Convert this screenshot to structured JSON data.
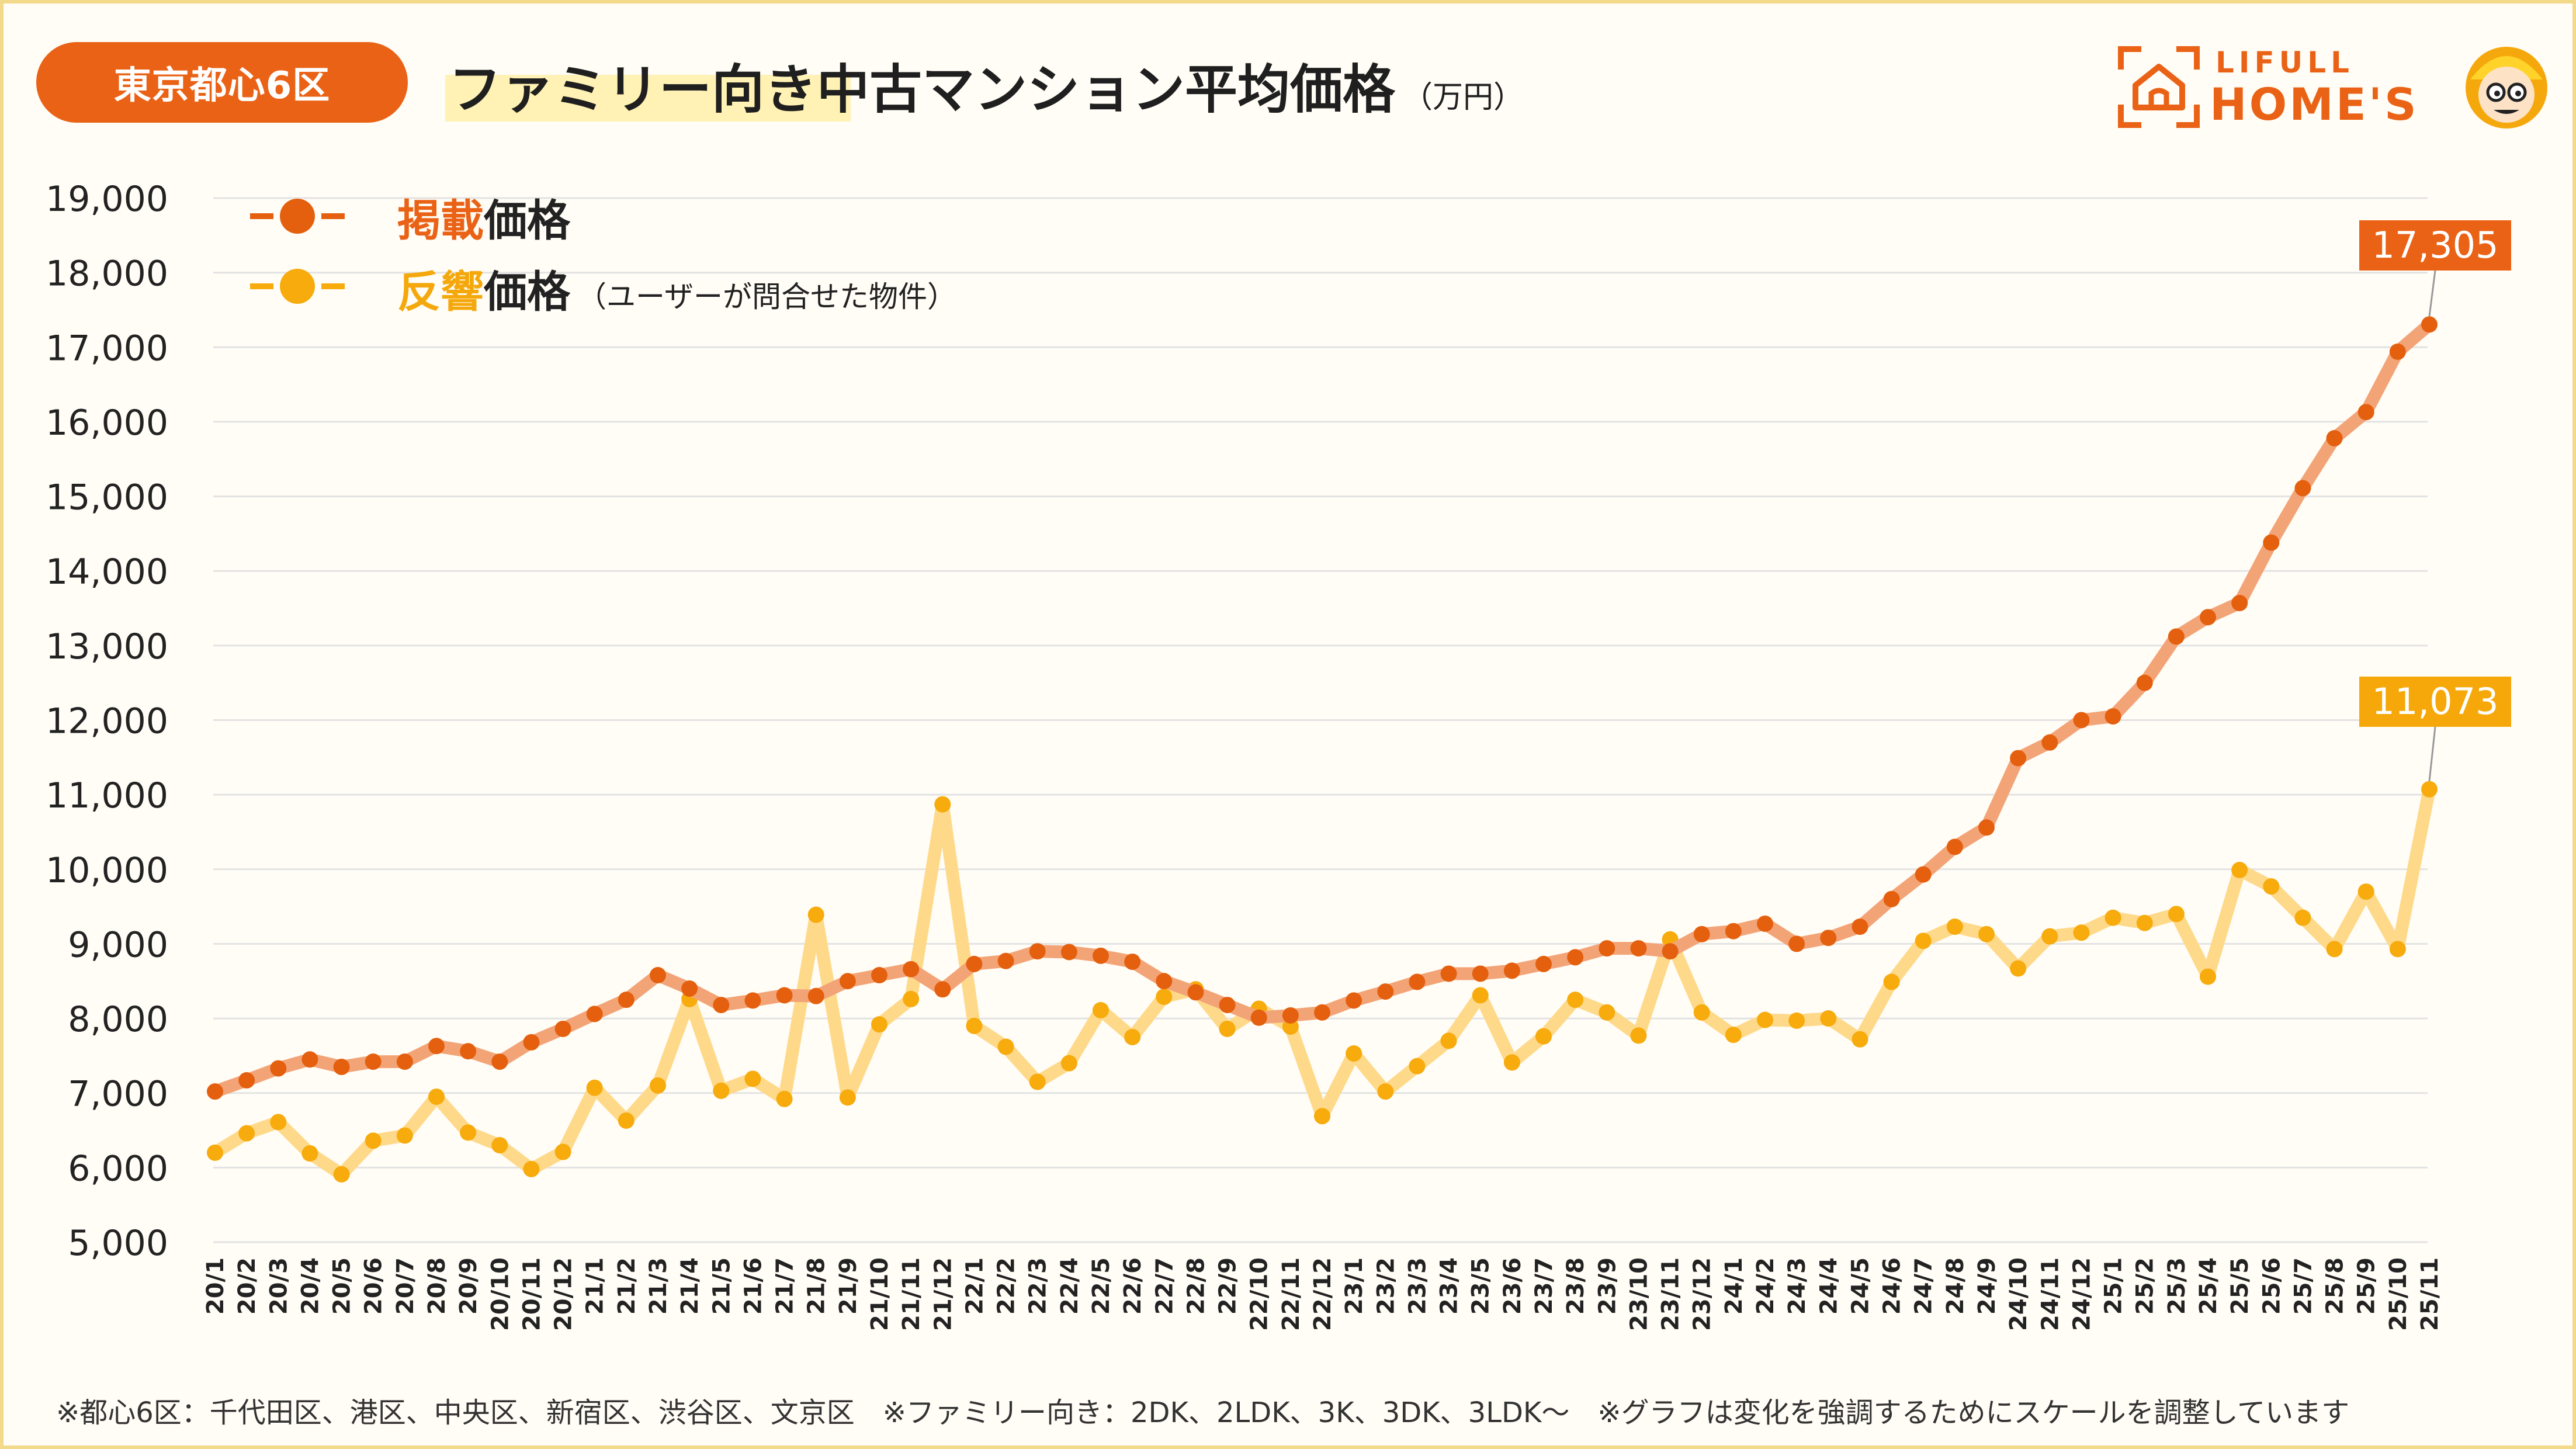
{
  "header": {
    "region_badge": "東京都心6区",
    "title": "ファミリー向き中古マンション平均価格",
    "unit": "（万円）"
  },
  "logo": {
    "line1": "LIFULL",
    "line2": "HOME'S",
    "icons": [
      "house-frame-icon",
      "mascot-icon"
    ],
    "color": "#ea6216"
  },
  "legend": {
    "listing": {
      "accent": "掲載",
      "rest": "価格"
    },
    "response": {
      "accent": "反響",
      "rest": "価格",
      "note": "（ユーザーが問合せた物件）"
    }
  },
  "footnote": "※都心6区：千代田区、港区、中央区、新宿区、渋谷区、文京区　※ファミリー向き：2DK、2LDK、3K、3DK、3LDK～　※グラフは変化を強調するためにスケールを調整しています",
  "colors": {
    "listing_line": "#f3a477",
    "listing_point": "#e4600f",
    "response_line": "#ffd98a",
    "response_point": "#f7ab0d",
    "grid": "#e3e3e3"
  },
  "chart_data": {
    "type": "line",
    "ylim": [
      5000,
      19000
    ],
    "yticks": [
      "5,000",
      "6,000",
      "7,000",
      "8,000",
      "9,000",
      "10,000",
      "11,000",
      "12,000",
      "13,000",
      "14,000",
      "15,000",
      "16,000",
      "17,000",
      "18,000",
      "19,000"
    ],
    "grid": true,
    "legend_position": "top-left",
    "categories": [
      "20/1",
      "20/2",
      "20/3",
      "20/4",
      "20/5",
      "20/6",
      "20/7",
      "20/8",
      "20/9",
      "20/10",
      "20/11",
      "20/12",
      "21/1",
      "21/2",
      "21/3",
      "21/4",
      "21/5",
      "21/6",
      "21/7",
      "21/8",
      "21/9",
      "21/10",
      "21/11",
      "21/12",
      "22/1",
      "22/2",
      "22/3",
      "22/4",
      "22/5",
      "22/6",
      "22/7",
      "22/8",
      "22/9",
      "22/10",
      "22/11",
      "22/12",
      "23/1",
      "23/2",
      "23/3",
      "23/4",
      "23/5",
      "23/6",
      "23/7",
      "23/8",
      "23/9",
      "23/10",
      "23/11",
      "23/12",
      "24/1",
      "24/2",
      "24/3",
      "24/4",
      "24/5",
      "24/6",
      "24/7",
      "24/8",
      "24/9",
      "24/10",
      "24/11",
      "24/12",
      "25/1",
      "25/2",
      "25/3",
      "25/4",
      "25/5",
      "25/6",
      "25/7",
      "25/8",
      "25/9",
      "25/10",
      "25/11"
    ],
    "series": [
      {
        "name": "掲載価格",
        "values": [
          7020,
          7170,
          7330,
          7450,
          7350,
          7420,
          7420,
          7630,
          7560,
          7420,
          7680,
          7860,
          8060,
          8250,
          8580,
          8400,
          8180,
          8240,
          8310,
          8300,
          8500,
          8580,
          8660,
          8390,
          8730,
          8770,
          8900,
          8890,
          8840,
          8760,
          8500,
          8350,
          8180,
          8010,
          8040,
          8080,
          8240,
          8360,
          8490,
          8600,
          8600,
          8640,
          8730,
          8820,
          8940,
          8940,
          8900,
          9130,
          9170,
          9270,
          9000,
          9080,
          9230,
          9600,
          9930,
          10300,
          10560,
          11490,
          11700,
          12000,
          12050,
          12500,
          13120,
          13380,
          13570,
          14380,
          15110,
          15780,
          16130,
          16940,
          17305
        ],
        "end_label": "17,305"
      },
      {
        "name": "反響価格",
        "values": [
          6200,
          6460,
          6610,
          6190,
          5910,
          6360,
          6430,
          6950,
          6470,
          6300,
          5980,
          6210,
          7070,
          6630,
          7100,
          8260,
          7030,
          7190,
          6920,
          9390,
          6940,
          7920,
          8260,
          10870,
          7900,
          7620,
          7150,
          7400,
          8110,
          7750,
          8290,
          8390,
          7860,
          8130,
          7890,
          6690,
          7530,
          7020,
          7360,
          7700,
          8310,
          7410,
          7760,
          8250,
          8080,
          7770,
          9060,
          8080,
          7780,
          7980,
          7970,
          8000,
          7720,
          8490,
          9040,
          9230,
          9130,
          8670,
          9100,
          9150,
          9350,
          9280,
          9400,
          8560,
          9990,
          9770,
          9350,
          8930,
          9700,
          8930,
          11073
        ],
        "end_label": "11,073"
      }
    ]
  }
}
